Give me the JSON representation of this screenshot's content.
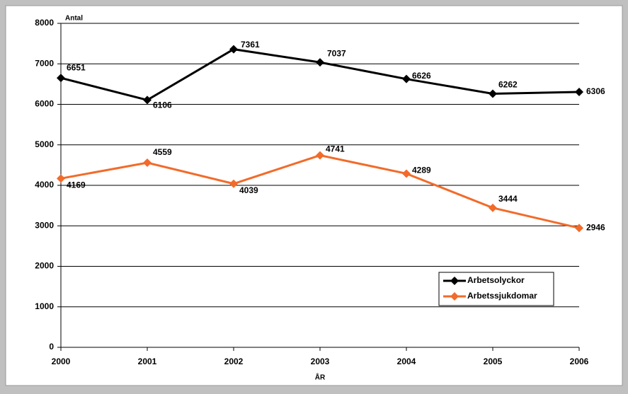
{
  "chart_data": {
    "type": "line",
    "x_label": "ÅR",
    "y_label": "Antal",
    "x": [
      2000,
      2001,
      2002,
      2003,
      2004,
      2005,
      2006
    ],
    "xlim": [
      2000,
      2006
    ],
    "xticks": [
      2000,
      2001,
      2002,
      2003,
      2004,
      2005,
      2006
    ],
    "ylim": [
      0,
      8000
    ],
    "yticks": [
      0,
      1000,
      2000,
      3000,
      4000,
      5000,
      6000,
      7000,
      8000
    ],
    "grid": true,
    "legend": "lower right",
    "series": [
      {
        "name": "Arbetsolyckor",
        "color": "#000000",
        "values": [
          6651,
          6106,
          7361,
          7037,
          6626,
          6262,
          6306
        ]
      },
      {
        "name": "Arbetssjukdomar",
        "color": "#f26b2a",
        "values": [
          4169,
          4559,
          4039,
          4741,
          4289,
          3444,
          2946
        ]
      }
    ]
  }
}
